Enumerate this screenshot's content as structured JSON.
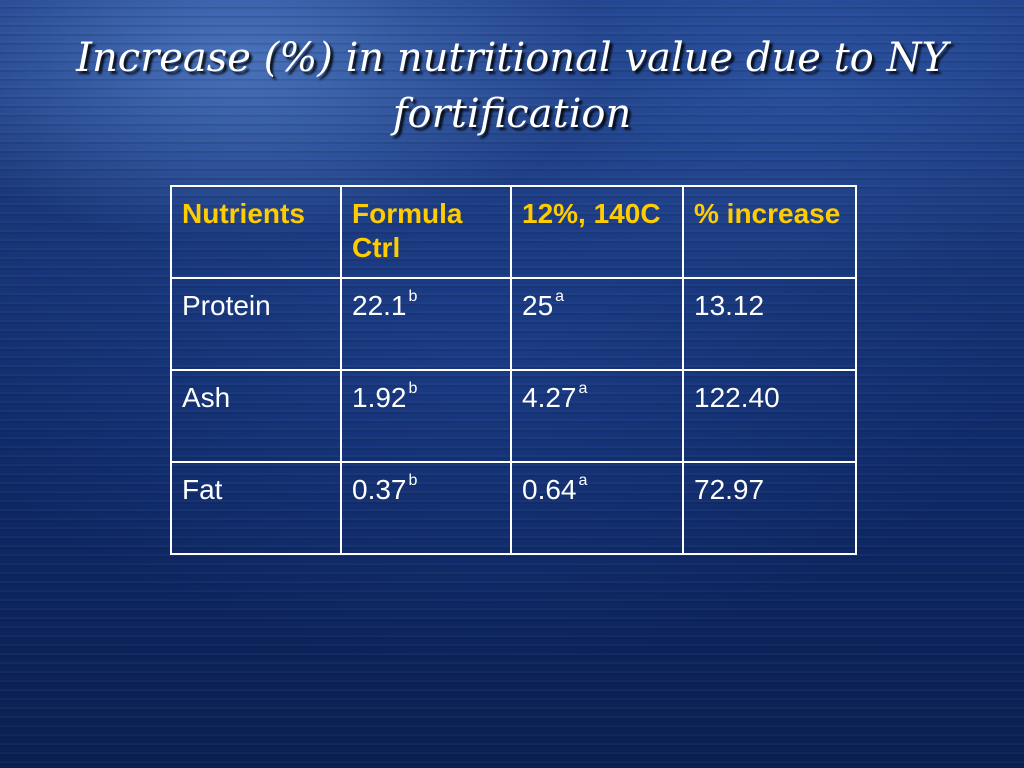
{
  "slide": {
    "title": "Increase (%) in nutritional value due to NY fortification"
  },
  "table": {
    "headers": [
      "Nutrients",
      "Formula Ctrl",
      "12%, 140C",
      "% increase"
    ],
    "rows": [
      {
        "nutrient": "Protein",
        "ctrl": "22.1",
        "ctrl_sup": "b",
        "fortified": "25",
        "fortified_sup": "a",
        "increase": "13.12"
      },
      {
        "nutrient": "Ash",
        "ctrl": "1.92",
        "ctrl_sup": "b",
        "fortified": "4.27",
        "fortified_sup": "a",
        "increase": "122.40"
      },
      {
        "nutrient": "Fat",
        "ctrl": "0.37",
        "ctrl_sup": "b",
        "fortified": "0.64",
        "fortified_sup": "a",
        "increase": "72.97"
      }
    ]
  },
  "colors": {
    "background": "#163476",
    "header_text": "#ffcc00",
    "body_text": "#ffffff",
    "border": "#ffffff"
  }
}
